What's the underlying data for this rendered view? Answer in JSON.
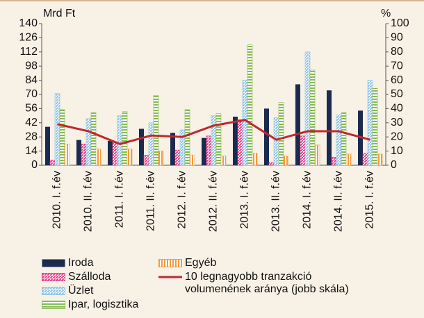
{
  "chart_data": {
    "type": "bar",
    "y_label": "Mrd Ft",
    "y2_label": "%",
    "categories": [
      "2010. I. f.év",
      "2010. II. f.év",
      "2011. I. f.év",
      "2011. II. f.év",
      "2012. I. f.év",
      "2012. II. f.év",
      "2013. I. f.év",
      "2013. II. f.év",
      "2014. I. f.év",
      "2014. II. f.év",
      "2015. I. f.év"
    ],
    "series": [
      {
        "name": "Iroda",
        "color": "#1b2a4e",
        "pattern": "solid",
        "values": [
          38,
          25,
          24,
          36,
          32,
          27,
          48,
          56,
          80,
          74,
          54
        ]
      },
      {
        "name": "Szálloda",
        "color": "#e8408a",
        "pattern": "diagonal",
        "values": [
          5,
          21,
          22,
          10,
          15,
          29,
          45,
          3,
          29,
          8,
          12
        ]
      },
      {
        "name": "Üzlet",
        "color": "#8fc3e6",
        "pattern": "diagonal",
        "values": [
          71,
          46,
          49,
          42,
          35,
          49,
          84,
          47,
          112,
          50,
          84
        ]
      },
      {
        "name": "Ipar, logisztika",
        "color": "#86bb55",
        "pattern": "horizontal",
        "values": [
          55,
          52,
          53,
          69,
          55,
          51,
          119,
          62,
          94,
          52,
          76
        ]
      },
      {
        "name": "Egyéb",
        "color": "#f39a3a",
        "pattern": "vertical",
        "values": [
          21,
          16,
          16,
          14,
          10,
          9,
          12,
          9,
          20,
          11,
          11
        ]
      },
      {
        "name": "10 legnagyobb tranzakció volumenének aránya (jobb skála)",
        "color": "#c0282d",
        "type": "line",
        "axis": "y2",
        "values": [
          29,
          24,
          15,
          21,
          20,
          28,
          32,
          18,
          24,
          24,
          18
        ]
      }
    ],
    "ylim": [
      0,
      140
    ],
    "yticks": [
      0,
      14,
      28,
      42,
      56,
      70,
      84,
      98,
      112,
      126,
      140
    ],
    "y2lim": [
      0,
      100
    ],
    "y2ticks": [
      0,
      10,
      20,
      30,
      40,
      50,
      60,
      70,
      80,
      90,
      100
    ],
    "grid": false
  }
}
